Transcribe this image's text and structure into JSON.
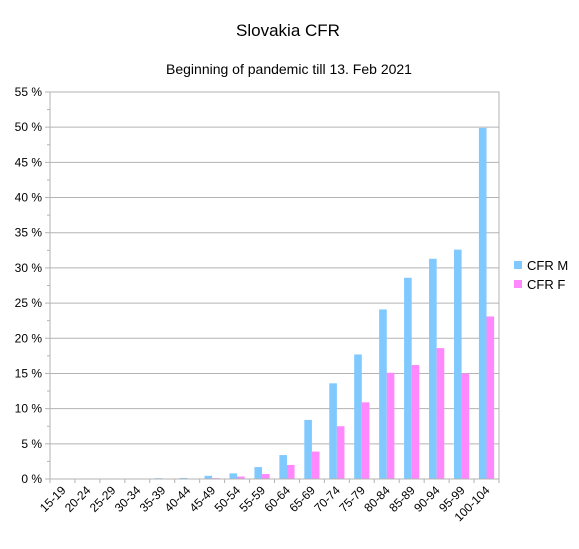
{
  "chart_data": {
    "type": "bar",
    "title": "Slovakia CFR",
    "subtitle": "Beginning of pandemic till 13. Feb 2021",
    "categories": [
      "15-19",
      "20-24",
      "25-29",
      "30-34",
      "35-39",
      "40-44",
      "45-49",
      "50-54",
      "55-59",
      "60-64",
      "65-69",
      "70-74",
      "75-79",
      "80-84",
      "85-89",
      "90-94",
      "95-99",
      "100-104"
    ],
    "series": [
      {
        "name": "CFR M",
        "color": "#7fc9ff",
        "values": [
          0,
          0,
          0,
          0.02,
          0.12,
          0.15,
          0.45,
          0.8,
          1.7,
          3.4,
          8.4,
          13.6,
          17.7,
          24.1,
          28.6,
          31.3,
          32.6,
          49.9
        ]
      },
      {
        "name": "CFR F",
        "color": "#ff88ff",
        "values": [
          0,
          0,
          0,
          0,
          0.02,
          0.05,
          0.12,
          0.35,
          0.7,
          2.0,
          3.9,
          7.5,
          10.9,
          15.1,
          16.2,
          18.6,
          15.0,
          23.1
        ]
      }
    ],
    "ylim": [
      0,
      55
    ],
    "yticks": [
      "0 %",
      "5 %",
      "10 %",
      "15 %",
      "20 %",
      "25 %",
      "30 %",
      "35 %",
      "40 %",
      "45 %",
      "50 %",
      "55 %"
    ],
    "grid": true,
    "legend": "right"
  }
}
